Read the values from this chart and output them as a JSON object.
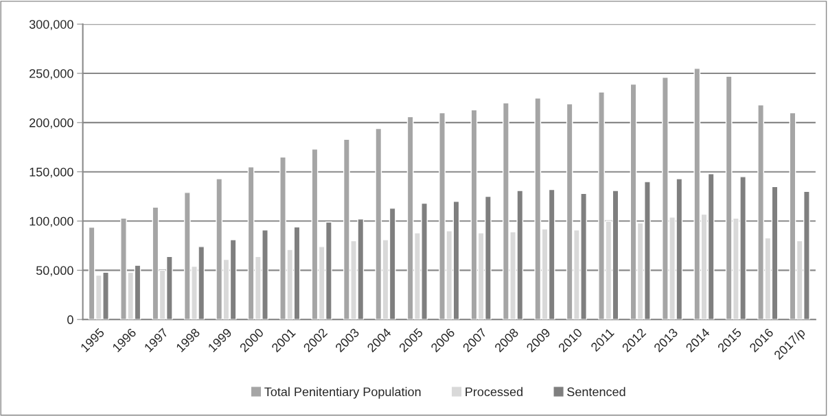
{
  "chart_data": {
    "type": "bar",
    "categories": [
      "1995",
      "1996",
      "1997",
      "1998",
      "1999",
      "2000",
      "2001",
      "2002",
      "2003",
      "2004",
      "2005",
      "2006",
      "2007",
      "2008",
      "2009",
      "2010",
      "2011",
      "2012",
      "2013",
      "2014",
      "2015",
      "2016",
      "2017/p"
    ],
    "series": [
      {
        "name": "Total Penitentiary Population",
        "color": "#a5a5a5",
        "values": [
          93700,
          103000,
          114000,
          129000,
          143000,
          155000,
          165000,
          173000,
          183000,
          194000,
          206000,
          210000,
          213000,
          220000,
          225000,
          219000,
          231000,
          239000,
          246000,
          255000,
          247000,
          218000,
          210000
        ]
      },
      {
        "name": "Processed",
        "color": "#d9d9d9",
        "values": [
          45000,
          48000,
          50000,
          54000,
          61000,
          64000,
          71000,
          74000,
          80000,
          81000,
          88000,
          90000,
          88000,
          89000,
          92000,
          91000,
          100000,
          98000,
          104000,
          107000,
          103000,
          83000,
          80000
        ]
      },
      {
        "name": "Sentenced",
        "color": "#7f7f7f",
        "values": [
          48000,
          55000,
          64000,
          74000,
          81000,
          91000,
          94000,
          99000,
          102000,
          113000,
          118000,
          120000,
          125000,
          131000,
          132000,
          128000,
          131000,
          140000,
          143000,
          148000,
          145000,
          135000,
          130000
        ]
      }
    ],
    "ylim": [
      0,
      300000
    ],
    "yticks": [
      {
        "value": 0,
        "label": "0"
      },
      {
        "value": 50000,
        "label": "50,000"
      },
      {
        "value": 100000,
        "label": "100,000"
      },
      {
        "value": 150000,
        "label": "150,000"
      },
      {
        "value": 200000,
        "label": "200,000"
      },
      {
        "value": 250000,
        "label": "250,000"
      },
      {
        "value": 300000,
        "label": "300,000"
      }
    ],
    "grid": "y",
    "legend": "bottom"
  }
}
